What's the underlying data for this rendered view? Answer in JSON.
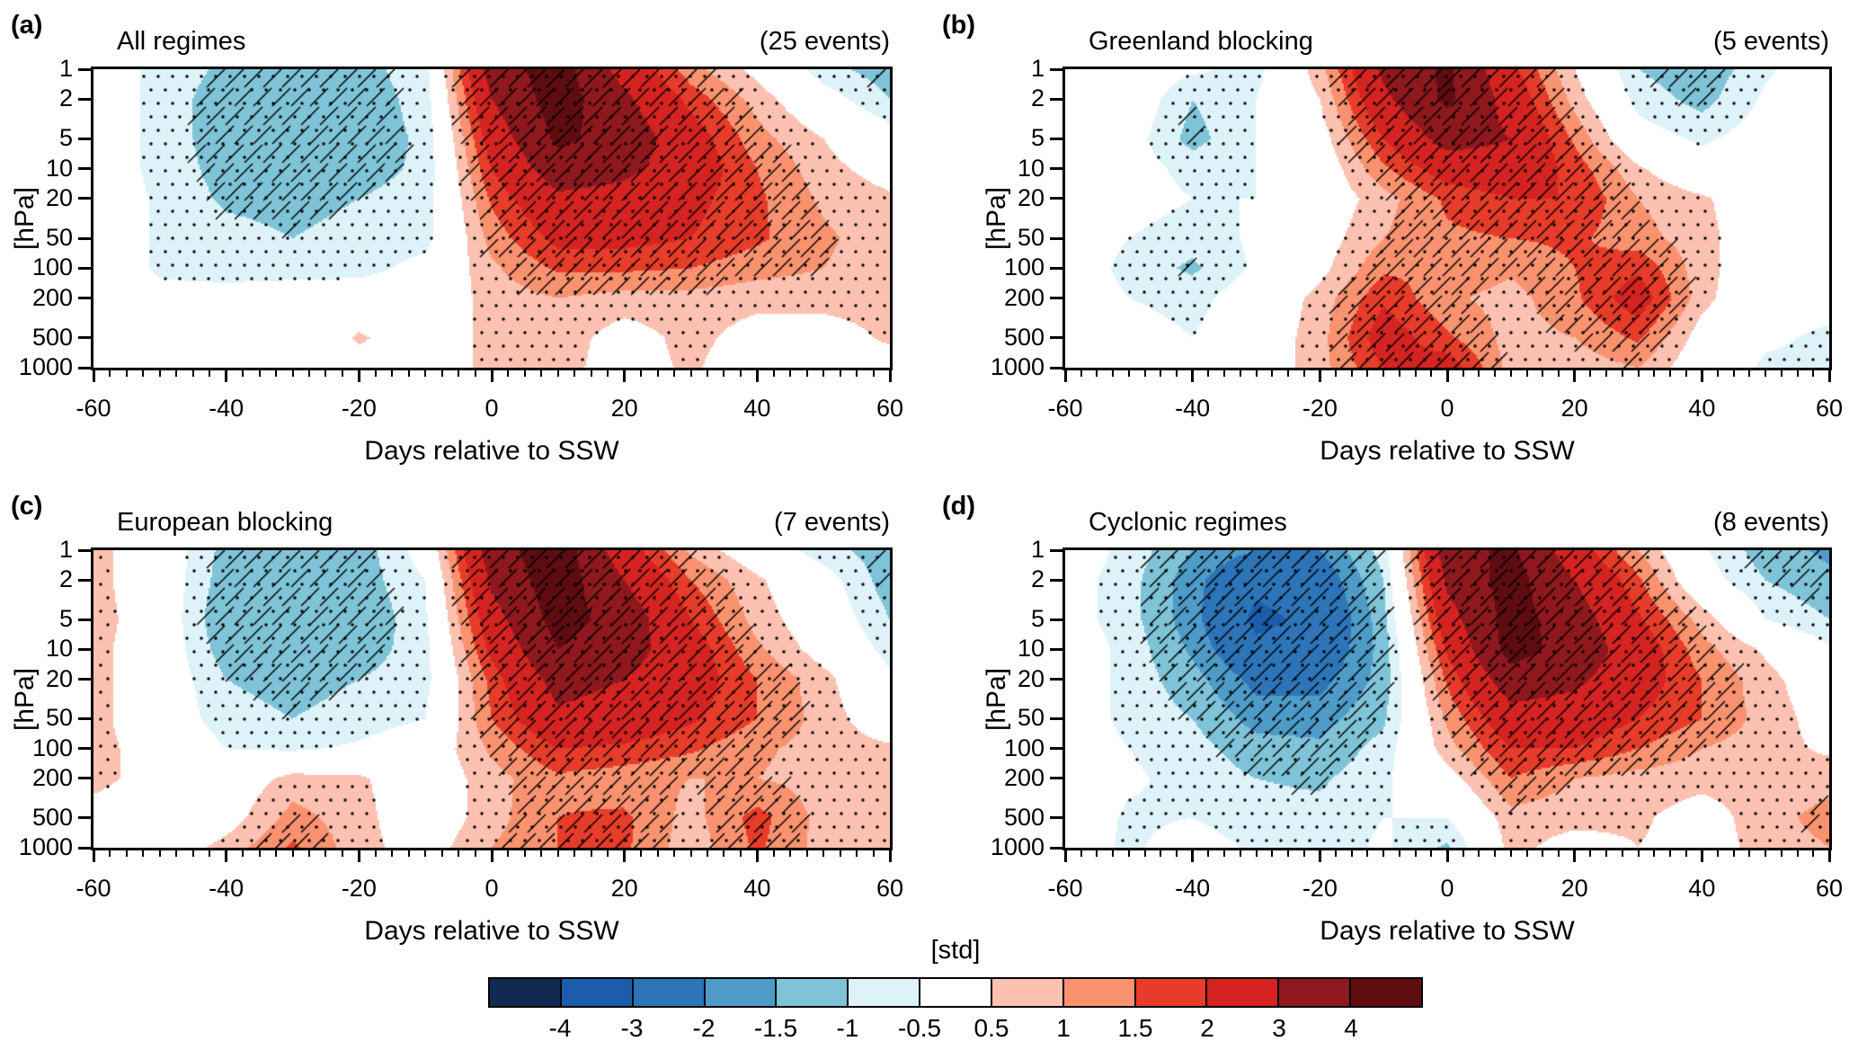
{
  "chart_data": {
    "type": "heatmap",
    "subtype": "filled-contour pressure-time composite sections",
    "units": "std",
    "x": {
      "label": "Days relative to SSW",
      "range": [
        -60,
        60
      ],
      "days": [
        -60,
        -50,
        -40,
        -30,
        -20,
        -10,
        0,
        10,
        20,
        30,
        40,
        50,
        60
      ],
      "major_ticks": [
        -60,
        -40,
        -20,
        0,
        20,
        40,
        60
      ],
      "minor_tick_step": 2.5
    },
    "y": {
      "label": "[hPa]",
      "scale": "log",
      "levels_hPa": [
        1,
        2,
        5,
        10,
        20,
        50,
        100,
        200,
        500,
        1000
      ]
    },
    "colorbar": {
      "label": "[std]",
      "boundaries": [
        -4,
        -3,
        -2,
        -1.5,
        -1,
        -0.5,
        0.5,
        1,
        1.5,
        2,
        3,
        4
      ],
      "tick_labels": [
        "-4",
        "-3",
        "-2",
        "-1.5",
        "-1",
        "-0.5",
        "0.5",
        "1",
        "1.5",
        "2",
        "3",
        "4"
      ],
      "colors": [
        "#112a50",
        "#1b5dab",
        "#2d74b9",
        "#4e9bc8",
        "#7ec3d7",
        "#def3f9",
        "#ffffff",
        "#fcc1b0",
        "#fa9270",
        "#e73c2a",
        "#d42320",
        "#8e181d",
        "#5f0c11"
      ]
    },
    "significance": {
      "stipple": "black dots where |anomaly| >= 0.5 std",
      "hatch": "diagonal lines where |anomaly| >= 1 std"
    },
    "panels": [
      {
        "label": "(a)",
        "title": "All regimes",
        "events": "(25 events)",
        "values": [
          [
            0,
            -0.7,
            -1.1,
            -1.3,
            -1.2,
            -0.7,
            3.5,
            4.5,
            2.6,
            1.2,
            0.3,
            -0.8,
            -1.3
          ],
          [
            0,
            -0.7,
            -1.3,
            -1.4,
            -1.3,
            -0.8,
            3.0,
            4.5,
            3.2,
            1.8,
            0.8,
            -0.2,
            -1.0
          ],
          [
            0,
            -0.7,
            -1.3,
            -1.4,
            -1.3,
            -0.9,
            2.4,
            4.2,
            3.6,
            2.4,
            1.2,
            0.5,
            -0.2
          ],
          [
            0,
            -0.7,
            -1.2,
            -1.4,
            -1.2,
            -0.9,
            2.0,
            3.6,
            3.2,
            2.5,
            1.5,
            0.7,
            0.2
          ],
          [
            0,
            -0.6,
            -1.1,
            -1.2,
            -1.0,
            -0.8,
            1.6,
            2.8,
            2.7,
            2.2,
            1.6,
            0.9,
            0.6
          ],
          [
            0,
            -0.6,
            -0.8,
            -1.0,
            -0.8,
            -0.7,
            1.2,
            2.2,
            2.2,
            2.0,
            1.6,
            1.1,
            0.7
          ],
          [
            0,
            -0.6,
            -0.7,
            -0.7,
            -0.7,
            -0.3,
            0.9,
            1.6,
            1.6,
            1.5,
            1.2,
            1.0,
            0.7
          ],
          [
            0,
            -0.3,
            -0.3,
            -0.2,
            -0.1,
            0,
            0.7,
            1.0,
            0.8,
            0.8,
            0.7,
            0.7,
            0.7
          ],
          [
            0,
            0,
            0,
            -0.3,
            0.6,
            0,
            0.7,
            0.8,
            0.2,
            0.7,
            0.2,
            0.2,
            0.6
          ],
          [
            0,
            0,
            0,
            -0.2,
            0.2,
            0,
            0.7,
            0.7,
            0.2,
            0.6,
            0,
            0,
            0.2
          ]
        ]
      },
      {
        "label": "(b)",
        "title": "Greenland blocking",
        "events": "(5 events)",
        "values": [
          [
            0,
            0,
            -0.4,
            -0.7,
            0.8,
            3.2,
            4.2,
            2.2,
            0.5,
            -1.0,
            -1.4,
            -0.6,
            0
          ],
          [
            0,
            0,
            -1.0,
            -0.5,
            0.5,
            2.8,
            4.2,
            2.6,
            0.8,
            -0.7,
            -1.2,
            -0.4,
            0
          ],
          [
            0,
            -0.2,
            -1.2,
            -0.5,
            0.2,
            2.0,
            3.4,
            3.0,
            1.4,
            -0.2,
            -0.6,
            -0.2,
            0
          ],
          [
            0,
            -0.2,
            -0.7,
            -0.5,
            0,
            1.4,
            2.4,
            2.6,
            1.8,
            0.6,
            -0.2,
            0,
            -0.2
          ],
          [
            0,
            -0.2,
            -0.5,
            -0.5,
            0,
            0.8,
            1.6,
            2.0,
            2.0,
            1.0,
            0.6,
            0,
            -0.4
          ],
          [
            0,
            -0.5,
            -0.8,
            -0.4,
            0.2,
            1.0,
            1.4,
            1.5,
            1.6,
            1.2,
            0.7,
            0,
            -0.5
          ],
          [
            0,
            -0.7,
            -1.1,
            -0.4,
            0.3,
            1.4,
            1.4,
            1.1,
            1.5,
            1.9,
            0.7,
            0,
            -0.5
          ],
          [
            0,
            -0.5,
            -0.7,
            -0.1,
            0.7,
            1.9,
            1.1,
            0.8,
            1.4,
            2.4,
            0.7,
            -0.2,
            -0.3
          ],
          [
            0,
            -0.2,
            -0.5,
            0,
            0.8,
            2.4,
            1.6,
            0.8,
            1.0,
            1.6,
            0.2,
            -0.4,
            -0.6
          ],
          [
            0,
            0,
            -0.2,
            0,
            0.8,
            2.0,
            2.4,
            0.8,
            0.7,
            1.0,
            0,
            -0.6,
            -0.6
          ]
        ]
      },
      {
        "label": "(c)",
        "title": "European blocking",
        "events": "(7 events)",
        "values": [
          [
            0.7,
            0,
            -1.2,
            -1.0,
            -1.3,
            -0.2,
            3.6,
            4.6,
            2.4,
            0.9,
            0,
            -0.8,
            -1.3
          ],
          [
            0.7,
            0,
            -1.3,
            -1.1,
            -1.3,
            -0.5,
            3.2,
            4.6,
            3.0,
            1.5,
            0.6,
            -0.2,
            -1.3
          ],
          [
            0.8,
            0,
            -1.5,
            -1.3,
            -1.5,
            -0.6,
            2.6,
            4.4,
            3.6,
            2.0,
            0.8,
            0,
            -1.0
          ],
          [
            0.7,
            0,
            -1.3,
            -1.5,
            -1.3,
            -0.7,
            2.2,
            4.0,
            3.4,
            2.4,
            1.1,
            0.2,
            -0.7
          ],
          [
            0.7,
            0,
            -1.0,
            -1.2,
            -1.0,
            -0.7,
            1.7,
            3.4,
            3.0,
            2.4,
            1.5,
            0.7,
            -0.4
          ],
          [
            0.7,
            0,
            -0.8,
            -1.0,
            -0.8,
            -0.5,
            1.5,
            2.8,
            2.5,
            2.1,
            1.5,
            0.8,
            0
          ],
          [
            0.7,
            0.2,
            -0.5,
            -0.6,
            -0.4,
            0,
            1.1,
            2.0,
            1.9,
            1.6,
            1.1,
            0.8,
            0.6
          ],
          [
            0.7,
            0.2,
            0,
            0.7,
            0.6,
            0,
            0.8,
            1.4,
            1.2,
            1.0,
            1.0,
            0.8,
            0.7
          ],
          [
            0.2,
            0,
            0.2,
            1.2,
            0.7,
            0,
            0.8,
            1.5,
            1.6,
            0.8,
            1.7,
            0.8,
            0.7
          ],
          [
            0,
            0,
            0.7,
            1.6,
            0.7,
            0.2,
            1.0,
            1.5,
            1.6,
            0.7,
            1.6,
            0.8,
            0.7
          ]
        ]
      },
      {
        "label": "(d)",
        "title": "Cyclonic regimes",
        "events": "(8 events)",
        "values": [
          [
            0,
            -0.7,
            -1.5,
            -2.0,
            -2.0,
            -0.8,
            3.6,
            4.2,
            2.4,
            1.0,
            -0.4,
            -1.3,
            -1.6
          ],
          [
            -0.2,
            -0.8,
            -1.8,
            -2.8,
            -2.5,
            -1.0,
            3.2,
            4.4,
            3.0,
            1.6,
            -0.2,
            -1.0,
            -1.4
          ],
          [
            -0.2,
            -0.8,
            -1.8,
            -3.2,
            -2.8,
            -1.2,
            2.6,
            4.4,
            3.5,
            2.1,
            0.8,
            -0.5,
            -1.0
          ],
          [
            0,
            -0.7,
            -1.6,
            -2.8,
            -2.6,
            -1.3,
            2.1,
            4.4,
            3.6,
            2.5,
            1.2,
            0.4,
            -0.4
          ],
          [
            0,
            -0.7,
            -1.3,
            -2.2,
            -2.2,
            -1.3,
            1.6,
            3.6,
            3.2,
            2.4,
            1.5,
            0.7,
            0
          ],
          [
            0,
            -0.7,
            -1.0,
            -1.7,
            -1.7,
            -1.1,
            1.1,
            2.6,
            2.5,
            2.0,
            1.5,
            0.8,
            0.2
          ],
          [
            0,
            -0.5,
            -0.8,
            -1.3,
            -1.4,
            -0.8,
            0.8,
            2.0,
            2.0,
            1.5,
            1.0,
            0.7,
            0.4
          ],
          [
            0,
            -0.4,
            -0.7,
            -1.0,
            -1.1,
            -0.6,
            0.2,
            1.5,
            1.0,
            0.8,
            0.7,
            0.7,
            0.8
          ],
          [
            0,
            -0.6,
            -0.5,
            -0.8,
            -0.8,
            -0.5,
            -0.5,
            0.8,
            0.7,
            0.6,
            0.2,
            0.8,
            1.2
          ],
          [
            -0.2,
            -0.6,
            -0.2,
            -0.6,
            -0.8,
            -0.4,
            -1.1,
            0.7,
            0.2,
            0.5,
            0.2,
            0.7,
            1.0
          ]
        ]
      }
    ]
  }
}
